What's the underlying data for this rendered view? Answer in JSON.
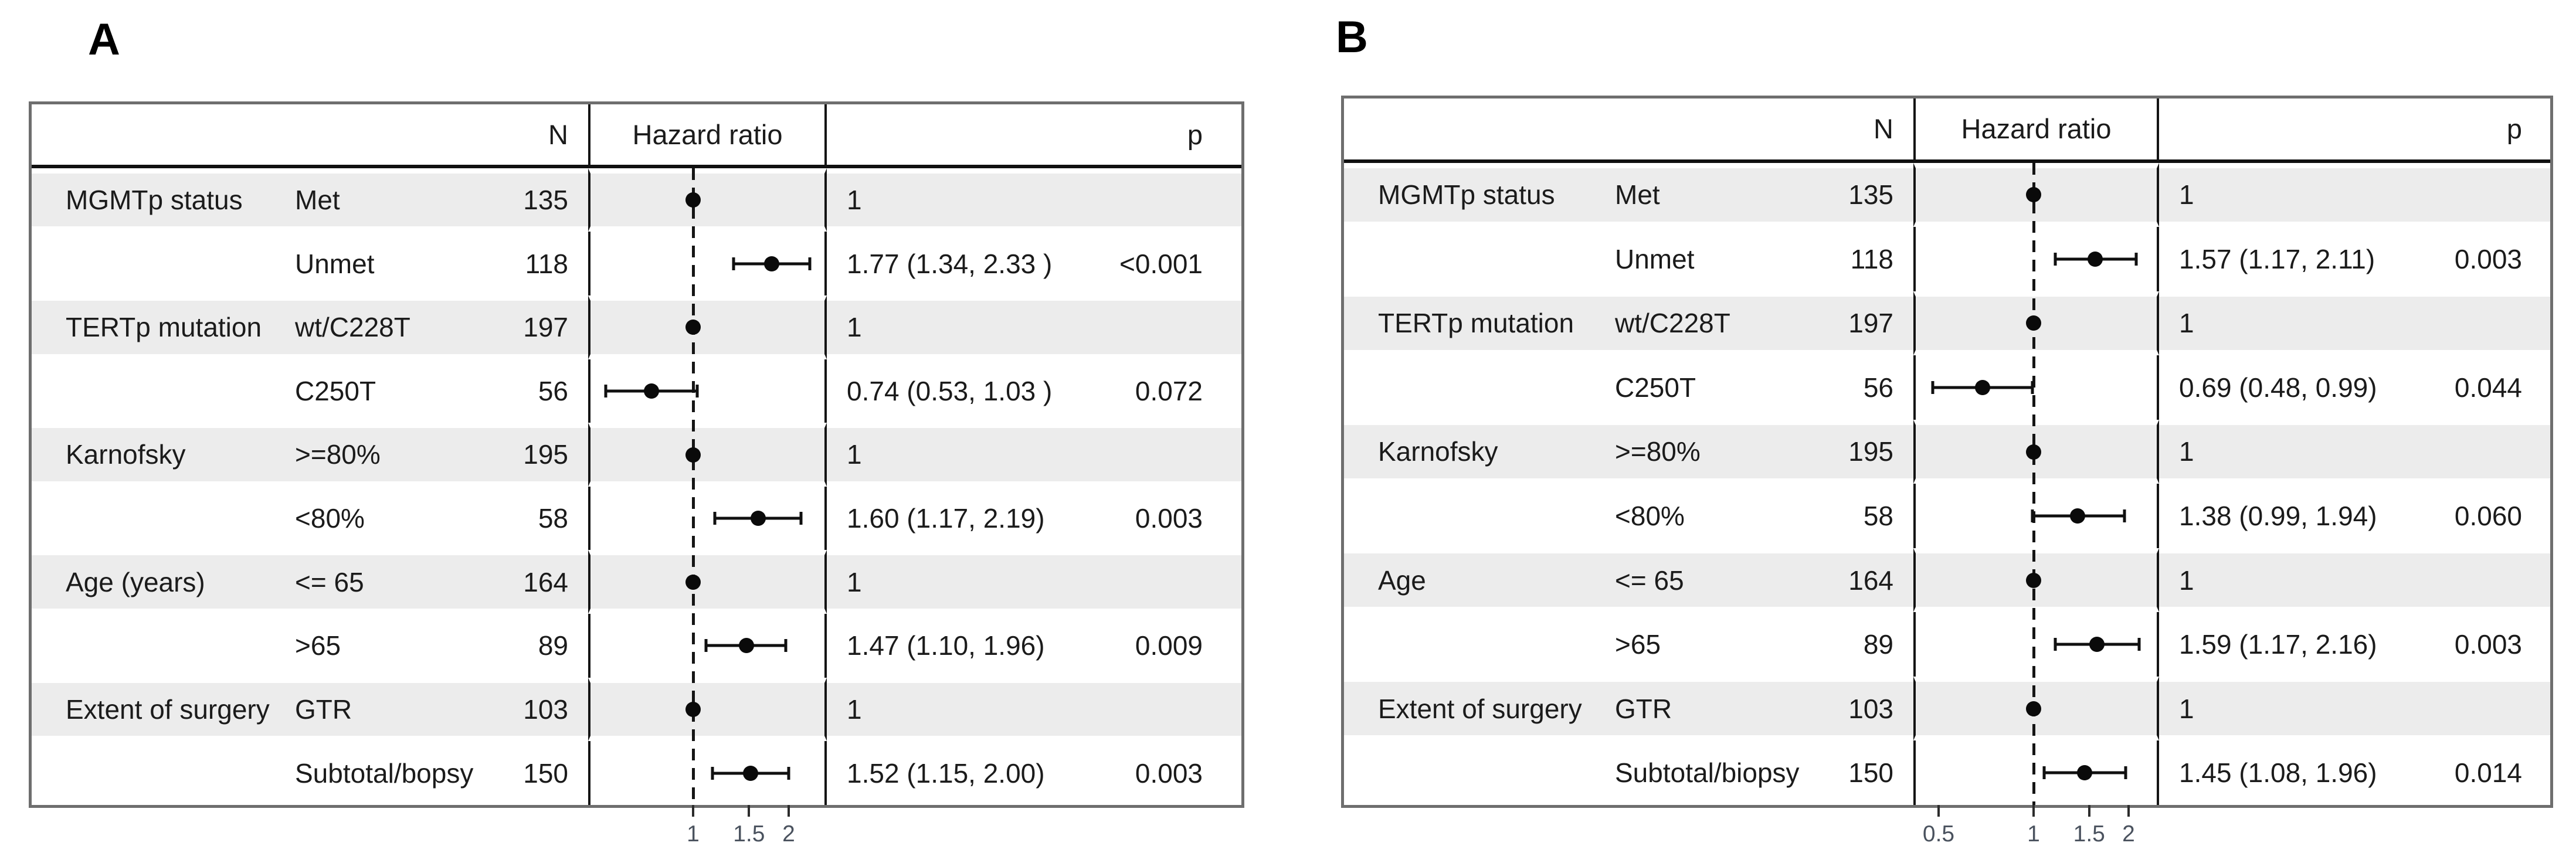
{
  "chart_data": [
    {
      "type": "forest",
      "panel": "A",
      "columns": {
        "n": "N",
        "hazard_ratio": "Hazard ratio",
        "p": "p"
      },
      "axis": {
        "scale": "log",
        "tick_values": [
          1,
          1.5,
          2
        ],
        "tick_labels": [
          "1",
          "1.5",
          "2"
        ]
      },
      "rows": [
        {
          "factor": "MGMTp status",
          "level": "Met",
          "n": "135",
          "hr": 1,
          "estimate": "1",
          "p": "",
          "reference": true,
          "shaded": true
        },
        {
          "factor": "",
          "level": "Unmet",
          "n": "118",
          "hr": 1.77,
          "ci_low": 1.34,
          "ci_high": 2.33,
          "estimate": "1.77 (1.34, 2.33 )",
          "p": "<0.001",
          "reference": false,
          "shaded": false
        },
        {
          "factor": "TERTp mutation",
          "level": "wt/C228T",
          "n": "197",
          "hr": 1,
          "estimate": "1",
          "p": "",
          "reference": true,
          "shaded": true
        },
        {
          "factor": "",
          "level": "C250T",
          "n": "56",
          "hr": 0.74,
          "ci_low": 0.53,
          "ci_high": 1.03,
          "estimate": "0.74 (0.53, 1.03 )",
          "p": "0.072",
          "reference": false,
          "shaded": false
        },
        {
          "factor": "Karnofsky",
          "level": ">=80%",
          "n": "195",
          "hr": 1,
          "estimate": "1",
          "p": "",
          "reference": true,
          "shaded": true
        },
        {
          "factor": "",
          "level": "<80%",
          "n": "58",
          "hr": 1.6,
          "ci_low": 1.17,
          "ci_high": 2.19,
          "estimate": "1.60 (1.17, 2.19)",
          "p": "0.003",
          "reference": false,
          "shaded": false
        },
        {
          "factor": "Age (years)",
          "level": "<= 65",
          "n": "164",
          "hr": 1,
          "estimate": "1",
          "p": "",
          "reference": true,
          "shaded": true
        },
        {
          "factor": "",
          "level": ">65",
          "n": "89",
          "hr": 1.47,
          "ci_low": 1.1,
          "ci_high": 1.96,
          "estimate": "1.47 (1.10, 1.96)",
          "p": "0.009",
          "reference": false,
          "shaded": false
        },
        {
          "factor": "Extent of surgery",
          "level": "GTR",
          "n": "103",
          "hr": 1,
          "estimate": "1",
          "p": "",
          "reference": true,
          "shaded": true
        },
        {
          "factor": "",
          "level": "Subtotal/bopsy",
          "n": "150",
          "hr": 1.52,
          "ci_low": 1.15,
          "ci_high": 2.0,
          "estimate": "1.52 (1.15, 2.00)",
          "p": "0.003",
          "reference": false,
          "shaded": false
        }
      ]
    },
    {
      "type": "forest",
      "panel": "B",
      "columns": {
        "n": "N",
        "hazard_ratio": "Hazard ratio",
        "p": "p"
      },
      "axis": {
        "scale": "log",
        "tick_values": [
          0.5,
          1,
          1.5,
          2
        ],
        "tick_labels": [
          "0.5",
          "1",
          "1.5",
          "2"
        ]
      },
      "rows": [
        {
          "factor": "MGMTp status",
          "level": "Met",
          "n": "135",
          "hr": 1,
          "estimate": "1",
          "p": "",
          "reference": true,
          "shaded": true
        },
        {
          "factor": "",
          "level": "Unmet",
          "n": "118",
          "hr": 1.57,
          "ci_low": 1.17,
          "ci_high": 2.11,
          "estimate": "1.57 (1.17, 2.11)",
          "p": "0.003",
          "reference": false,
          "shaded": false
        },
        {
          "factor": "TERTp mutation",
          "level": "wt/C228T",
          "n": "197",
          "hr": 1,
          "estimate": "1",
          "p": "",
          "reference": true,
          "shaded": true
        },
        {
          "factor": "",
          "level": "C250T",
          "n": "56",
          "hr": 0.69,
          "ci_low": 0.48,
          "ci_high": 0.99,
          "estimate": "0.69 (0.48, 0.99)",
          "p": "0.044",
          "reference": false,
          "shaded": false
        },
        {
          "factor": "Karnofsky",
          "level": ">=80%",
          "n": "195",
          "hr": 1,
          "estimate": "1",
          "p": "",
          "reference": true,
          "shaded": true
        },
        {
          "factor": "",
          "level": "<80%",
          "n": "58",
          "hr": 1.38,
          "ci_low": 0.99,
          "ci_high": 1.94,
          "estimate": "1.38 (0.99, 1.94)",
          "p": "0.060",
          "reference": false,
          "shaded": false
        },
        {
          "factor": "Age",
          "level": "<= 65",
          "n": "164",
          "hr": 1,
          "estimate": "1",
          "p": "",
          "reference": true,
          "shaded": true
        },
        {
          "factor": "",
          "level": ">65",
          "n": "89",
          "hr": 1.59,
          "ci_low": 1.17,
          "ci_high": 2.16,
          "estimate": "1.59 (1.17, 2.16)",
          "p": "0.003",
          "reference": false,
          "shaded": false
        },
        {
          "factor": "Extent of surgery",
          "level": "GTR",
          "n": "103",
          "hr": 1,
          "estimate": "1",
          "p": "",
          "reference": true,
          "shaded": true
        },
        {
          "factor": "",
          "level": "Subtotal/biopsy",
          "n": "150",
          "hr": 1.45,
          "ci_low": 1.08,
          "ci_high": 1.96,
          "estimate": "1.45 (1.08, 1.96)",
          "p": "0.014",
          "reference": false,
          "shaded": false
        }
      ]
    }
  ]
}
